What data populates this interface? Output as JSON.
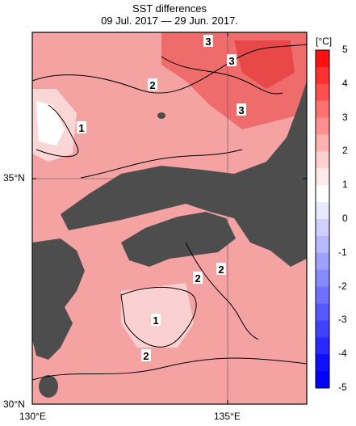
{
  "title": "SST differences",
  "subtitle": "09 Jul. 2017 — 29 Jun. 2017.",
  "unit_label": "[°C]",
  "axes": {
    "lat_ticks": [
      "35°N",
      "30°N"
    ],
    "lon_ticks": [
      "130°E",
      "135°E"
    ]
  },
  "colorbar": {
    "labels": [
      "5",
      "4",
      "3",
      "2",
      "1",
      "0",
      "-1",
      "-2",
      "-3",
      "-4",
      "-5"
    ],
    "colors": [
      "#ff1010",
      "#ff3030",
      "#ff5050",
      "#ff7070",
      "#ff9090",
      "#ffb0b0",
      "#ffd0d0",
      "#ffeaea",
      "#ffffff",
      "#e8e8ff",
      "#d0d0ff",
      "#b8b8ff",
      "#a0a0ff",
      "#8888ff",
      "#7070ff",
      "#5858ff",
      "#4040ff",
      "#2828ff",
      "#1010ff",
      "#0000ff"
    ]
  },
  "contour_labels": [
    "3",
    "3",
    "2",
    "3",
    "1",
    "2",
    "2",
    "1",
    "2"
  ],
  "colors": {
    "land": "#4d4d4d",
    "sea_warm": "#f7a8a8",
    "sea_hot": "#f06060",
    "sea_cool": "#fde0e0"
  }
}
